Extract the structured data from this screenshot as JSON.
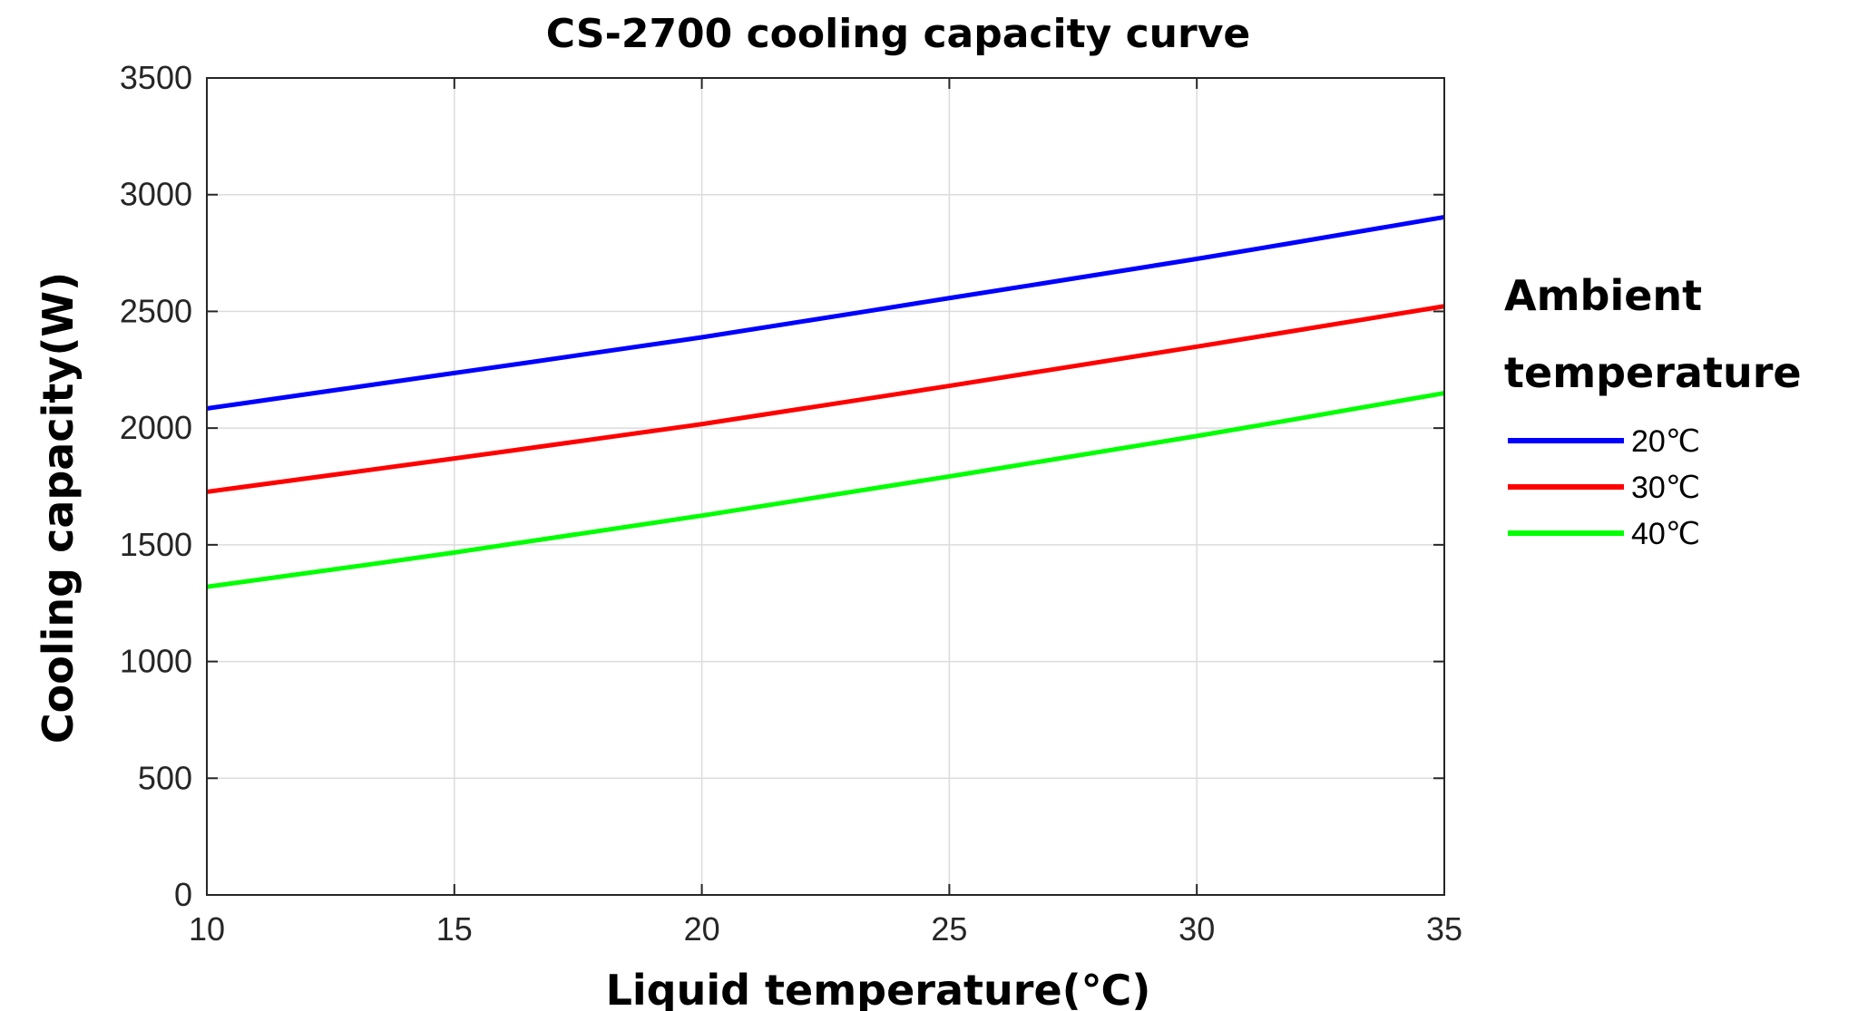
{
  "chart_data": {
    "type": "line",
    "title": "CS-2700 cooling capacity curve",
    "xlabel": "Liquid temperature(℃)",
    "ylabel": "Cooling capacity(W)",
    "xlim": [
      10,
      35
    ],
    "ylim": [
      0,
      3500
    ],
    "xticks": [
      10,
      15,
      20,
      25,
      30,
      35
    ],
    "yticks": [
      0,
      500,
      1000,
      1500,
      2000,
      2500,
      3000,
      3500
    ],
    "grid": true,
    "legend": {
      "title_lines": [
        "Ambient",
        "temperature"
      ],
      "placement": "right"
    },
    "x": [
      10,
      15,
      20,
      25,
      30,
      35
    ],
    "series": [
      {
        "name": "20℃",
        "color": "#0000ff",
        "values": [
          2084,
          2236,
          2389,
          2557,
          2725,
          2904
        ]
      },
      {
        "name": "30℃",
        "color": "#ff0000",
        "values": [
          1727,
          1870,
          2017,
          2181,
          2349,
          2522
        ]
      },
      {
        "name": "40℃",
        "color": "#00ff00",
        "values": [
          1320,
          1467,
          1625,
          1793,
          1966,
          2150
        ]
      }
    ]
  }
}
